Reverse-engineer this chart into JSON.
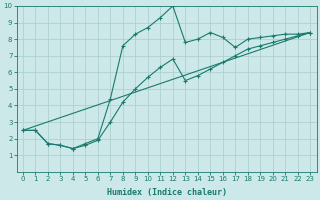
{
  "xlabel": "Humidex (Indice chaleur)",
  "xlim": [
    -0.5,
    23.5
  ],
  "ylim": [
    0,
    10
  ],
  "bg_color": "#cce8e8",
  "line_color": "#1a7a6e",
  "grid_color": "#b0d0d0",
  "line1_x": [
    0,
    1,
    2,
    3,
    4,
    5,
    6,
    7,
    8,
    9,
    10,
    11,
    12,
    13,
    14,
    15,
    16,
    17,
    18,
    19,
    20,
    21,
    22,
    23
  ],
  "line1_y": [
    2.5,
    2.5,
    1.7,
    1.6,
    1.4,
    1.7,
    2.0,
    4.4,
    7.6,
    8.3,
    8.7,
    9.3,
    10.0,
    7.8,
    8.0,
    8.4,
    8.1,
    7.5,
    8.0,
    8.1,
    8.2,
    8.3,
    8.3,
    8.4
  ],
  "line2_x": [
    0,
    1,
    2,
    3,
    4,
    5,
    6,
    7,
    8,
    9,
    10,
    11,
    12,
    13,
    14,
    15,
    16,
    17,
    18,
    19,
    20,
    21,
    22,
    23
  ],
  "line2_y": [
    2.5,
    2.5,
    1.7,
    1.6,
    1.4,
    1.6,
    1.9,
    3.0,
    4.2,
    5.0,
    5.7,
    6.3,
    6.8,
    5.5,
    5.8,
    6.2,
    6.6,
    7.0,
    7.4,
    7.6,
    7.8,
    8.0,
    8.2,
    8.4
  ],
  "line3_x": [
    0,
    23
  ],
  "line3_y": [
    2.5,
    8.4
  ],
  "yticks": [
    1,
    2,
    3,
    4,
    5,
    6,
    7,
    8,
    9,
    10
  ],
  "xticks": [
    0,
    1,
    2,
    3,
    4,
    5,
    6,
    7,
    8,
    9,
    10,
    11,
    12,
    13,
    14,
    15,
    16,
    17,
    18,
    19,
    20,
    21,
    22,
    23
  ],
  "xlabel_fontsize": 6,
  "tick_fontsize": 5,
  "lw": 0.8,
  "marker_size": 3
}
